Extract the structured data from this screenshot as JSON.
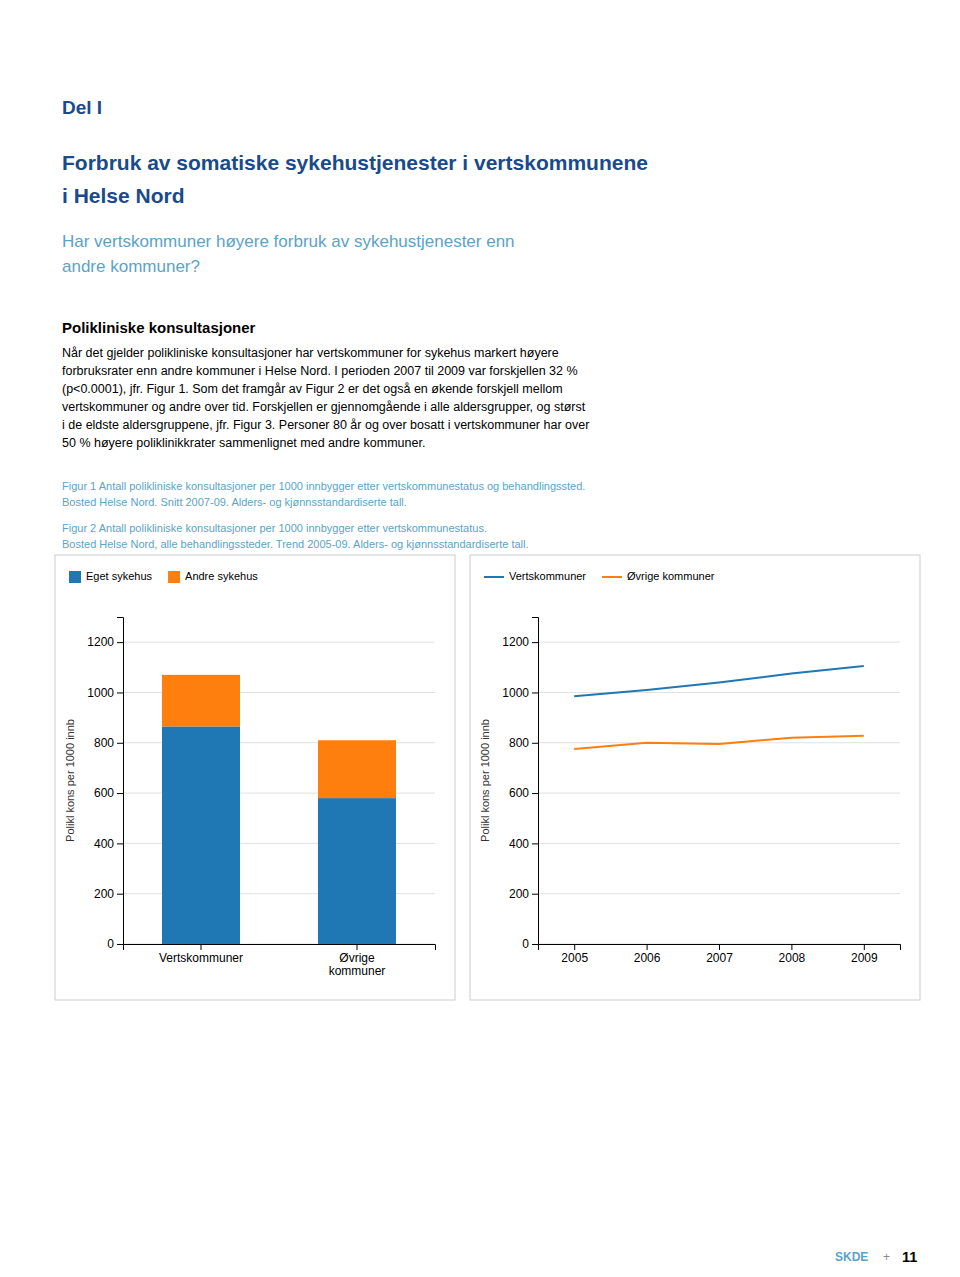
{
  "page": {
    "label": "Del I",
    "title": [
      "Forbruk av somatiske sykehustjenester i vertskommunene",
      "i Helse Nord"
    ],
    "subtitle": [
      "Har vertskommuner høyere forbruk av sykehustjenester enn",
      "andre kommuner?"
    ],
    "section_heading": "Polikliniske konsultasjoner",
    "body": [
      "Når det gjelder polikliniske konsultasjoner har vertskommuner for sykehus markert høyere",
      "forbruksrater enn andre kommuner i Helse Nord. I perioden 2007 til 2009 var forskjellen 32 %",
      "(p<0.0001), jfr. Figur 1. Som det framgår av Figur 2 er det også en økende forskjell mellom",
      "vertskommuner og andre over tid. Forskjellen er gjennomgående i alle aldersgrupper, og størst",
      "i de eldste aldersgruppene, jfr. Figur 3. Personer 80 år og over bosatt i vertskommuner har over",
      "50 % høyere poliklinikkrater sammenlignet med andre kommuner."
    ],
    "footer": [
      "SKDE",
      "+",
      "11"
    ]
  },
  "chart_data": [
    {
      "type": "bar",
      "caption": [
        "Figur 1 Antall polikliniske konsultasjoner per 1000 innbygger etter vertskommunestatus og behandlingssted.",
        "Bosted Helse Nord. Snitt 2007-09. Alders- og kjønnsstandardiserte tall."
      ],
      "categories": [
        "Vertskommuner",
        "Øvrige\nkommuner"
      ],
      "series": [
        {
          "name": "Eget sykehus",
          "values": [
            865,
            580
          ]
        },
        {
          "name": "Andre sykehus",
          "values": [
            205,
            230
          ]
        }
      ],
      "stacked": true,
      "y_label": "Polikl kons per 1000 innb",
      "ylim": [
        0,
        1300
      ],
      "yticks": [
        0,
        200,
        400,
        600,
        800,
        1000,
        1200
      ],
      "grid": true,
      "legend": "top-left"
    },
    {
      "type": "line",
      "caption": [
        "Figur 2 Antall polikliniske konsultasjoner per 1000 innbygger etter vertskommunestatus.",
        "Bosted Helse Nord, alle behandlingssteder. Trend 2005-09. Alders- og kjønnsstandardiserte tall."
      ],
      "x": [
        2005,
        2006,
        2007,
        2008,
        2009
      ],
      "xlim": [
        2004.5,
        2009.5
      ],
      "xticks": [
        2005,
        2006,
        2007,
        2008,
        2009
      ],
      "series": [
        {
          "name": "Vertskommuner",
          "values": [
            985,
            1010,
            1040,
            1075,
            1105
          ]
        },
        {
          "name": "Øvrige kommuner",
          "values": [
            775,
            800,
            795,
            820,
            828
          ]
        }
      ],
      "y_label": "Polikl kons per 1000 innb",
      "ylim": [
        0,
        1300
      ],
      "yticks": [
        0,
        200,
        400,
        600,
        800,
        1000,
        1200
      ],
      "grid": true,
      "legend": "top-left"
    }
  ]
}
